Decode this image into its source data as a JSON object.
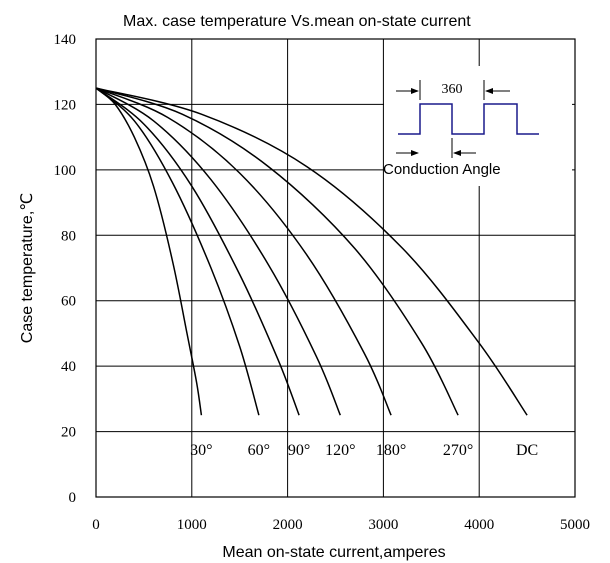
{
  "chart_data": {
    "type": "line",
    "title": "Max. case temperature  Vs.mean on-state current",
    "xlabel": "Mean on-state current,amperes",
    "ylabel": "Case temperature,℃",
    "xlim": [
      0,
      5000
    ],
    "ylim": [
      0,
      140
    ],
    "xticks": [
      0,
      1000,
      2000,
      3000,
      4000,
      5000
    ],
    "yticks": [
      0,
      20,
      40,
      60,
      80,
      100,
      120,
      140
    ],
    "grid": true,
    "series": [
      {
        "name": "30°",
        "color": "#000000",
        "x": [
          0,
          200,
          400,
          600,
          800,
          950,
          1050,
          1100
        ],
        "y": [
          125,
          120,
          110,
          95,
          72,
          50,
          35,
          25
        ]
      },
      {
        "name": "60°",
        "color": "#000000",
        "x": [
          0,
          400,
          800,
          1200,
          1500,
          1700
        ],
        "y": [
          125,
          115,
          96,
          70,
          46,
          25
        ]
      },
      {
        "name": "90°",
        "color": "#000000",
        "x": [
          0,
          500,
          1000,
          1500,
          1900,
          2120
        ],
        "y": [
          125,
          114,
          95,
          68,
          42,
          25
        ]
      },
      {
        "name": "120°",
        "color": "#000000",
        "x": [
          0,
          600,
          1200,
          1800,
          2300,
          2550
        ],
        "y": [
          125,
          115,
          97,
          71,
          43,
          25
        ]
      },
      {
        "name": "180°",
        "color": "#000000",
        "x": [
          0,
          750,
          1500,
          2200,
          2800,
          3080
        ],
        "y": [
          125,
          116,
          99,
          74,
          44,
          25
        ]
      },
      {
        "name": "270°",
        "color": "#000000",
        "x": [
          0,
          900,
          1800,
          2700,
          3400,
          3780
        ],
        "y": [
          125,
          117,
          101,
          76,
          47,
          25
        ]
      },
      {
        "name": "DC",
        "color": "#000000",
        "x": [
          0,
          1100,
          2200,
          3200,
          4000,
          4500
        ],
        "y": [
          125,
          117,
          101,
          76,
          47,
          25
        ]
      }
    ],
    "annotations": {
      "period_label": "360",
      "conduction_label": "Conduction  Angle",
      "waveform_color": "#1a1a8c"
    }
  }
}
